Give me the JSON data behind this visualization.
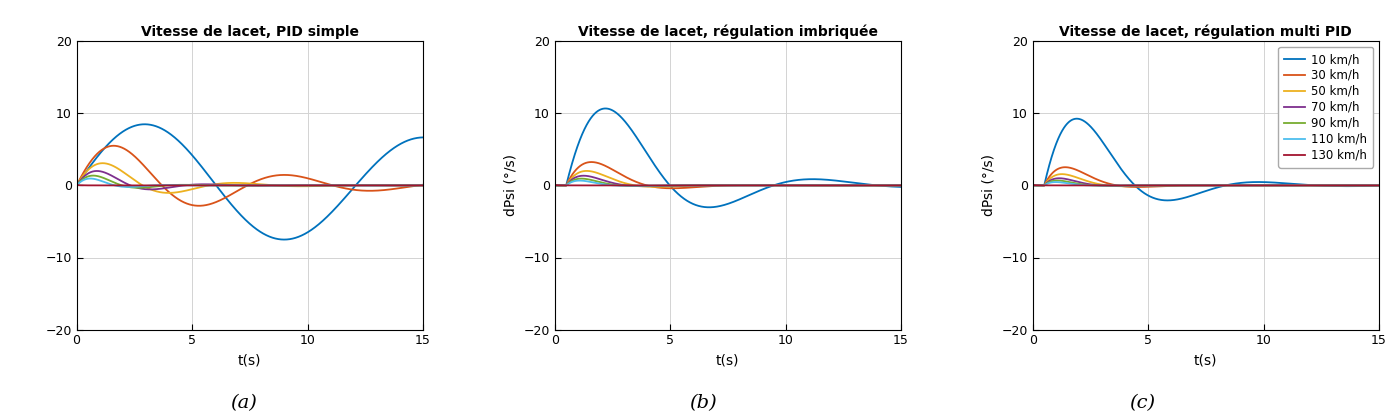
{
  "titles": [
    "Vitesse de lacet, PID simple",
    "Vitesse de lacet, régulation imbriquée",
    "Vitesse de lacet, régulation multi PID"
  ],
  "xlabel": "t(s)",
  "ylabels": [
    "",
    "dPsi (°/s)",
    "dPsi (°/s)"
  ],
  "xlim": [
    0,
    15
  ],
  "ylim": [
    -20,
    20
  ],
  "yticks": [
    -20,
    -10,
    0,
    10,
    20
  ],
  "xticks": [
    0,
    5,
    10,
    15
  ],
  "speeds": [
    10,
    30,
    50,
    70,
    90,
    110,
    130
  ],
  "colors": [
    "#0072BD",
    "#D95319",
    "#EDB120",
    "#7E2F8E",
    "#77AC30",
    "#4DBEEE",
    "#A2142F"
  ],
  "legend_labels": [
    "10 km/h",
    "30 km/h",
    "50 km/h",
    "70 km/h",
    "90 km/h",
    "110 km/h",
    "130 km/h"
  ],
  "subfig_labels": [
    "(a)",
    "(b)",
    "(c)"
  ],
  "background_color": "#ffffff",
  "grid_color": "#d3d3d3",
  "pid_simple": {
    "10": {
      "amp": 9.0,
      "omega": 0.52,
      "decay": 0.02,
      "phase": 0.0,
      "t0": 0.0
    },
    "30": {
      "amp": 7.5,
      "omega": 0.85,
      "decay": 0.18,
      "phase": 0.0,
      "t0": 0.0
    },
    "50": {
      "amp": 5.0,
      "omega": 1.1,
      "decay": 0.38,
      "phase": 0.0,
      "t0": 0.0
    },
    "70": {
      "amp": 3.5,
      "omega": 1.35,
      "decay": 0.55,
      "phase": 0.0,
      "t0": 0.0
    },
    "90": {
      "amp": 2.5,
      "omega": 1.6,
      "decay": 0.72,
      "phase": 0.0,
      "t0": 0.0
    },
    "110": {
      "amp": 1.8,
      "omega": 1.9,
      "decay": 0.9,
      "phase": 0.0,
      "t0": 0.0
    },
    "130": {
      "amp": 0.05,
      "omega": 0.0,
      "decay": 5.0,
      "phase": 0.0,
      "t0": 0.0
    }
  },
  "pid_nested": {
    "10": {
      "amp": 18.5,
      "omega": 0.7,
      "decay": 0.28,
      "phase": 0.0,
      "t0": 0.5
    },
    "30": {
      "amp": 7.5,
      "omega": 0.9,
      "decay": 0.6,
      "phase": 0.0,
      "t0": 0.5
    },
    "50": {
      "amp": 5.0,
      "omega": 1.05,
      "decay": 0.78,
      "phase": 0.0,
      "t0": 0.5
    },
    "70": {
      "amp": 3.5,
      "omega": 1.2,
      "decay": 0.95,
      "phase": 0.0,
      "t0": 0.5
    },
    "90": {
      "amp": 2.5,
      "omega": 1.35,
      "decay": 1.1,
      "phase": 0.0,
      "t0": 0.5
    },
    "110": {
      "amp": 1.8,
      "omega": 1.5,
      "decay": 1.25,
      "phase": 0.0,
      "t0": 0.5
    },
    "130": {
      "amp": 0.05,
      "omega": 0.0,
      "decay": 5.0,
      "phase": 0.0,
      "t0": 0.0
    }
  },
  "pid_multi": {
    "10": {
      "amp": 17.5,
      "omega": 0.8,
      "decay": 0.38,
      "phase": 0.0,
      "t0": 0.5
    },
    "30": {
      "amp": 6.5,
      "omega": 1.0,
      "decay": 0.78,
      "phase": 0.0,
      "t0": 0.5
    },
    "50": {
      "amp": 4.2,
      "omega": 1.15,
      "decay": 0.95,
      "phase": 0.0,
      "t0": 0.5
    },
    "70": {
      "amp": 2.8,
      "omega": 1.3,
      "decay": 1.15,
      "phase": 0.0,
      "t0": 0.5
    },
    "90": {
      "amp": 2.0,
      "omega": 1.45,
      "decay": 1.35,
      "phase": 0.0,
      "t0": 0.5
    },
    "110": {
      "amp": 1.4,
      "omega": 1.6,
      "decay": 1.55,
      "phase": 0.0,
      "t0": 0.5
    },
    "130": {
      "amp": 0.05,
      "omega": 0.0,
      "decay": 5.0,
      "phase": 0.0,
      "t0": 0.0
    }
  }
}
